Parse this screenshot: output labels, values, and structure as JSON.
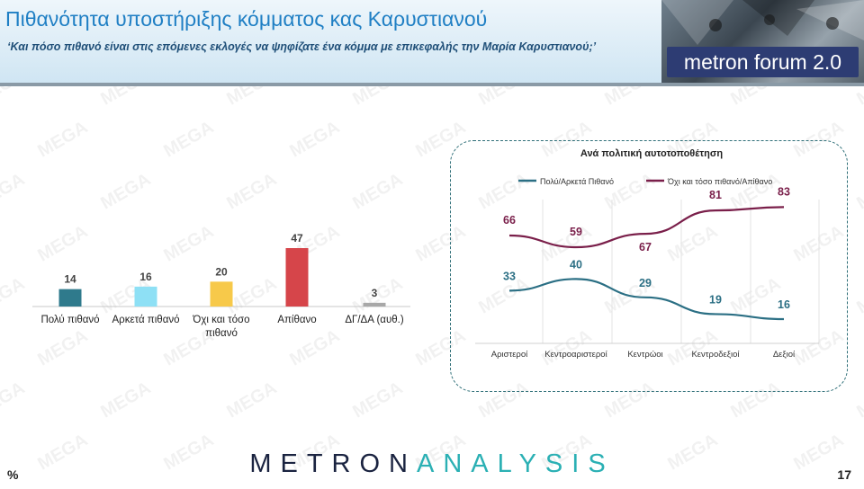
{
  "header": {
    "title": "Πιθανότητα υποστήριξης κόμματος κας Καρυστιανού",
    "subtitle": "‘Και πόσο πιθανό είναι στις επόμενες εκλογές να ψηφίζατε ένα κόμμα με επικεφαλής την Μαρία Καρυστιανού;’",
    "logo_text": "metron forum 2.0"
  },
  "watermark_text": "MEGA",
  "footer": {
    "brand_part1": "METRON",
    "brand_part2": "ANALYSIS",
    "unit_label": "%",
    "page_number": "17"
  },
  "colors": {
    "title": "#1f7fc4",
    "bar_colors": [
      "#2f7a8c",
      "#8ee0f5",
      "#f7c94a",
      "#d6454a",
      "#a8a8a8"
    ],
    "line_likely": "#2b6f84",
    "line_unlikely": "#7a1f4a",
    "panel_border": "#2f6f78"
  },
  "chart_data": [
    {
      "type": "bar",
      "categories": [
        "Πολύ πιθανό",
        "Αρκετά πιθανό",
        "Όχι και τόσο πιθανό",
        "Απίθανο",
        "ΔΓ/ΔΑ (αυθ.)"
      ],
      "values": [
        14,
        16,
        20,
        47,
        3
      ],
      "data_labels": [
        "14",
        "16",
        "20",
        "47",
        "3"
      ],
      "ylim": [
        0,
        47
      ]
    },
    {
      "type": "line",
      "title": "Ανά πολιτική αυτοτοποθέτηση",
      "categories": [
        "Αριστεροί",
        "Κεντροαριστεροί",
        "Κεντρώοι",
        "Κεντροδεξιοί",
        "Δεξιοί"
      ],
      "series": [
        {
          "name": "Πολύ/Αρκετά Πιθανό",
          "values": [
            33,
            40,
            29,
            19,
            16
          ]
        },
        {
          "name": "Όχι και τόσο πιθανό/Απίθανο",
          "values": [
            66,
            59,
            67,
            81,
            83
          ]
        }
      ],
      "legend": "top",
      "grid": "vertical"
    }
  ]
}
